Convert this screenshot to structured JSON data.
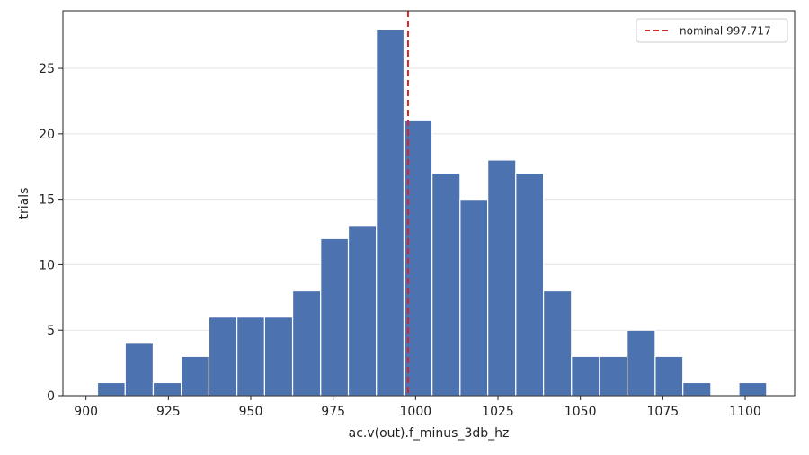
{
  "chart_data": {
    "type": "bar",
    "title": "",
    "xlabel": "ac.v(out).f_minus_3db_hz",
    "ylabel": "trials",
    "xlim": [
      893,
      1115
    ],
    "ylim": [
      0,
      29.4
    ],
    "x_ticks": [
      900,
      925,
      950,
      975,
      1000,
      1025,
      1050,
      1075,
      1100
    ],
    "y_ticks": [
      0,
      5,
      10,
      15,
      20,
      25
    ],
    "grid": "y",
    "bar_color": "#4c72b0",
    "bins": [
      {
        "start": 903.5,
        "end": 911.9,
        "count": 1
      },
      {
        "start": 911.9,
        "end": 920.4,
        "count": 4
      },
      {
        "start": 920.4,
        "end": 928.9,
        "count": 1
      },
      {
        "start": 928.9,
        "end": 937.3,
        "count": 3
      },
      {
        "start": 937.3,
        "end": 945.8,
        "count": 6
      },
      {
        "start": 945.8,
        "end": 954.2,
        "count": 6
      },
      {
        "start": 954.2,
        "end": 962.7,
        "count": 6
      },
      {
        "start": 962.7,
        "end": 971.2,
        "count": 8
      },
      {
        "start": 971.2,
        "end": 979.6,
        "count": 12
      },
      {
        "start": 979.6,
        "end": 988.1,
        "count": 13
      },
      {
        "start": 988.1,
        "end": 996.5,
        "count": 28
      },
      {
        "start": 996.5,
        "end": 1005.0,
        "count": 21
      },
      {
        "start": 1005.0,
        "end": 1013.5,
        "count": 17
      },
      {
        "start": 1013.5,
        "end": 1021.9,
        "count": 15
      },
      {
        "start": 1021.9,
        "end": 1030.4,
        "count": 18
      },
      {
        "start": 1030.4,
        "end": 1038.8,
        "count": 17
      },
      {
        "start": 1038.8,
        "end": 1047.3,
        "count": 8
      },
      {
        "start": 1047.3,
        "end": 1055.8,
        "count": 3
      },
      {
        "start": 1055.8,
        "end": 1064.2,
        "count": 3
      },
      {
        "start": 1064.2,
        "end": 1072.7,
        "count": 5
      },
      {
        "start": 1072.7,
        "end": 1081.1,
        "count": 3
      },
      {
        "start": 1081.1,
        "end": 1089.6,
        "count": 1
      },
      {
        "start": 1089.6,
        "end": 1098.1,
        "count": 0
      },
      {
        "start": 1098.1,
        "end": 1106.5,
        "count": 1
      }
    ],
    "reference_line": {
      "value": 997.717,
      "label": "nominal 997.717",
      "color": "#d62728",
      "style": "dashed"
    },
    "legend_position": "top-right"
  }
}
